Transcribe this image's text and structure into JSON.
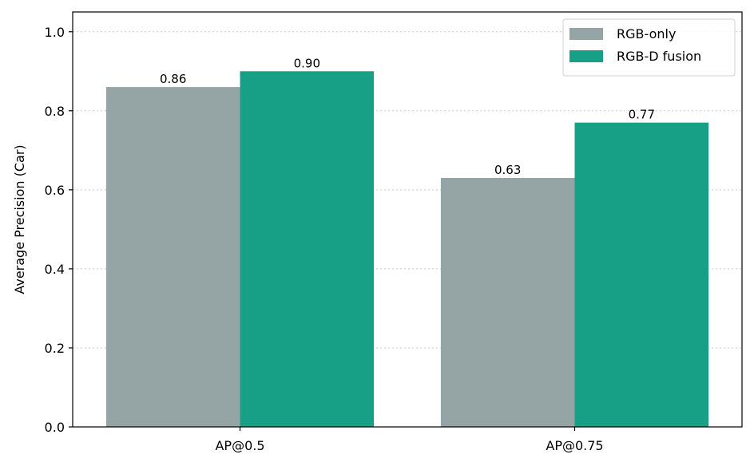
{
  "chart_data": {
    "type": "bar",
    "categories": [
      "AP@0.5",
      "AP@0.75"
    ],
    "series": [
      {
        "name": "RGB-only",
        "values": [
          0.86,
          0.63
        ],
        "labels": [
          "0.86",
          "0.63"
        ],
        "color": "#95a5a6"
      },
      {
        "name": "RGB-D fusion",
        "values": [
          0.9,
          0.77
        ],
        "labels": [
          "0.90",
          "0.77"
        ],
        "color": "#17a085"
      }
    ],
    "ylabel": "Average Precision (Car)",
    "xlabel": "",
    "ylim": [
      0,
      1.05
    ],
    "yticks": [
      0.0,
      0.2,
      0.4,
      0.6,
      0.8,
      1.0
    ],
    "ytick_labels": [
      "0.0",
      "0.2",
      "0.4",
      "0.6",
      "0.8",
      "1.0"
    ],
    "grid": "y-dotted",
    "legend_position": "top-right"
  }
}
